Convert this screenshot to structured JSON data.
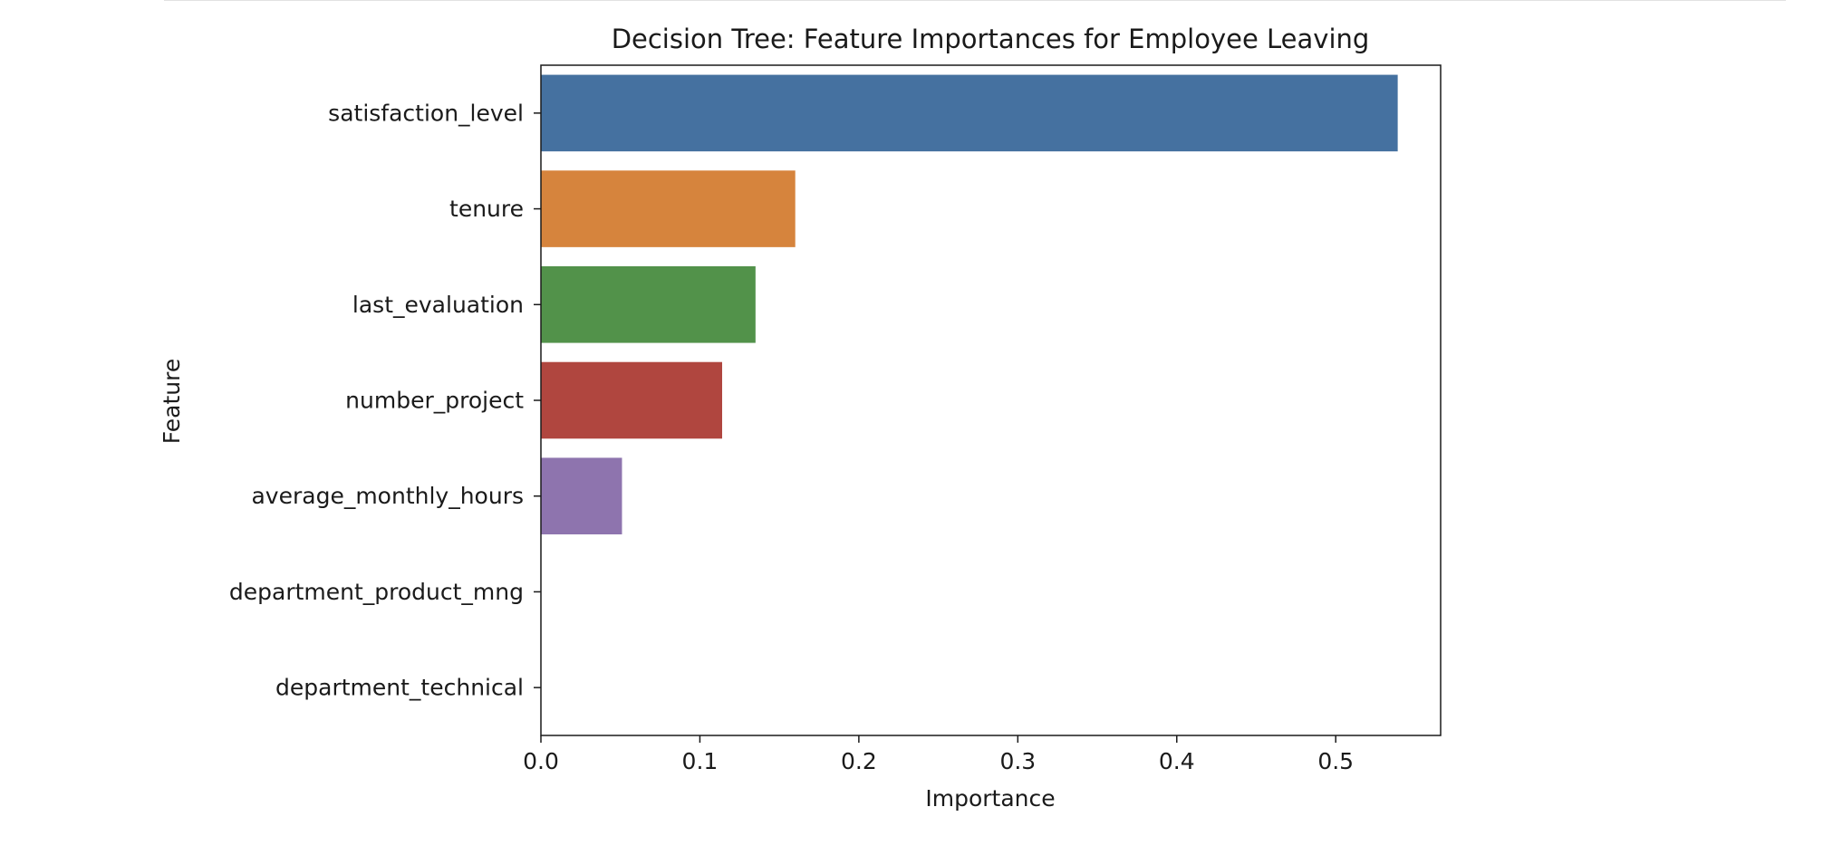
{
  "chart_data": {
    "type": "bar",
    "orientation": "horizontal",
    "title": "Decision Tree: Feature Importances for Employee Leaving",
    "xlabel": "Importance",
    "ylabel": "Feature",
    "categories": [
      "satisfaction_level",
      "tenure",
      "last_evaluation",
      "number_project",
      "average_monthly_hours",
      "department_product_mng",
      "department_technical"
    ],
    "values": [
      0.539,
      0.16,
      0.135,
      0.114,
      0.051,
      0.0,
      0.0
    ],
    "colors": [
      "#4571a0",
      "#d6843d",
      "#52924a",
      "#b0463f",
      "#8e74ae",
      "#8a6456",
      "#d386c0"
    ],
    "xlim": [
      0,
      0.566
    ],
    "xticks": [
      0.0,
      0.1,
      0.2,
      0.3,
      0.4,
      0.5
    ],
    "xtick_labels": [
      "0.0",
      "0.1",
      "0.2",
      "0.3",
      "0.4",
      "0.5"
    ],
    "grid": false,
    "legend": "none"
  }
}
